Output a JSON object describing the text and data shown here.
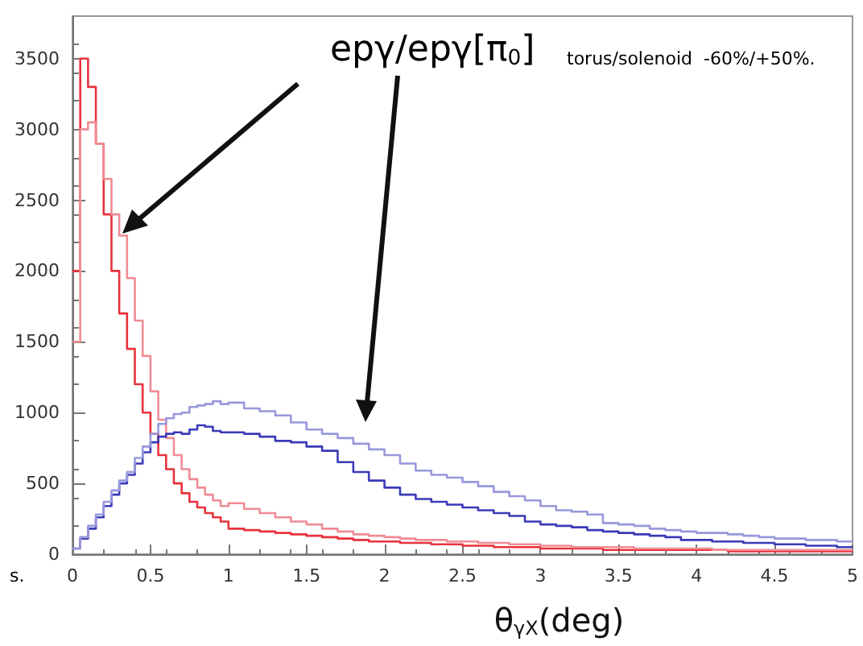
{
  "chart_data": {
    "type": "histogram",
    "xlabel": "θ$_{γX}$(deg)",
    "annotations": [
      "epγ/epγ[π$_{0}$]",
      "torus/solenoid  -60%/+50%.",
      "s."
    ],
    "bins": [
      0,
      0.05,
      0.1,
      0.15,
      0.2,
      0.25,
      0.3,
      0.35,
      0.4,
      0.45,
      0.5,
      0.55,
      0.6,
      0.65,
      0.7,
      0.75,
      0.8,
      0.85,
      0.9,
      0.95,
      1,
      1.1,
      1.2,
      1.3,
      1.4,
      1.5,
      1.6,
      1.7,
      1.8,
      1.9,
      2,
      2.1,
      2.2,
      2.3,
      2.4,
      2.5,
      2.6,
      2.7,
      2.8,
      2.9,
      3,
      3.1,
      3.2,
      3.3,
      3.4,
      3.5,
      3.6,
      3.7,
      3.8,
      3.9,
      4,
      4.1,
      4.2,
      4.3,
      4.4,
      4.5,
      4.6,
      4.7,
      4.8,
      4.9,
      5
    ],
    "series": [
      {
        "color": "#e8323c",
        "values": [
          2000,
          3500,
          3300,
          2900,
          2400,
          2000,
          1700,
          1450,
          1200,
          1000,
          850,
          700,
          600,
          500,
          430,
          370,
          330,
          290,
          260,
          230,
          180,
          170,
          160,
          150,
          140,
          130,
          120,
          110,
          100,
          90,
          90,
          80,
          80,
          70,
          70,
          60,
          60,
          50,
          50,
          50,
          40,
          40,
          40,
          40,
          30,
          30,
          30,
          30,
          30,
          30,
          30,
          30,
          20,
          20,
          20,
          20,
          20,
          20,
          20,
          20
        ]
      },
      {
        "color": "#f08c94",
        "values": [
          1500,
          3000,
          3050,
          2900,
          2650,
          2400,
          2250,
          1950,
          1650,
          1400,
          1150,
          950,
          820,
          700,
          600,
          530,
          470,
          420,
          380,
          340,
          360,
          320,
          290,
          260,
          230,
          210,
          180,
          160,
          140,
          130,
          120,
          110,
          100,
          100,
          90,
          90,
          80,
          80,
          70,
          70,
          60,
          60,
          50,
          50,
          50,
          50,
          40,
          40,
          40,
          40,
          40,
          30,
          30,
          30,
          30,
          30,
          30,
          30,
          30,
          30
        ]
      },
      {
        "color": "#3a3ab8",
        "values": [
          40,
          110,
          180,
          260,
          340,
          420,
          500,
          560,
          640,
          720,
          790,
          830,
          850,
          860,
          850,
          880,
          910,
          900,
          870,
          860,
          860,
          850,
          830,
          800,
          790,
          760,
          730,
          650,
          580,
          520,
          470,
          420,
          390,
          370,
          350,
          330,
          310,
          290,
          270,
          230,
          210,
          200,
          190,
          170,
          160,
          150,
          140,
          130,
          120,
          100,
          100,
          90,
          90,
          80,
          80,
          70,
          70,
          60,
          60,
          50
        ]
      },
      {
        "color": "#9898dc",
        "values": [
          40,
          120,
          200,
          280,
          370,
          450,
          520,
          580,
          680,
          760,
          850,
          920,
          960,
          990,
          1000,
          1040,
          1050,
          1060,
          1080,
          1060,
          1070,
          1030,
          1010,
          980,
          930,
          880,
          850,
          820,
          780,
          740,
          700,
          640,
          590,
          560,
          540,
          510,
          480,
          440,
          410,
          380,
          340,
          310,
          300,
          280,
          220,
          210,
          200,
          180,
          170,
          160,
          150,
          150,
          140,
          130,
          120,
          110,
          110,
          100,
          100,
          90
        ]
      }
    ],
    "xlim": [
      0,
      5
    ],
    "xticks": [
      0,
      0.5,
      1,
      1.5,
      2,
      2.5,
      3,
      3.5,
      4,
      4.5,
      5
    ],
    "ylim": [
      0,
      3800
    ],
    "yticks": [
      0,
      500,
      1000,
      1500,
      2000,
      2500,
      3000,
      3500
    ],
    "grid": false
  }
}
